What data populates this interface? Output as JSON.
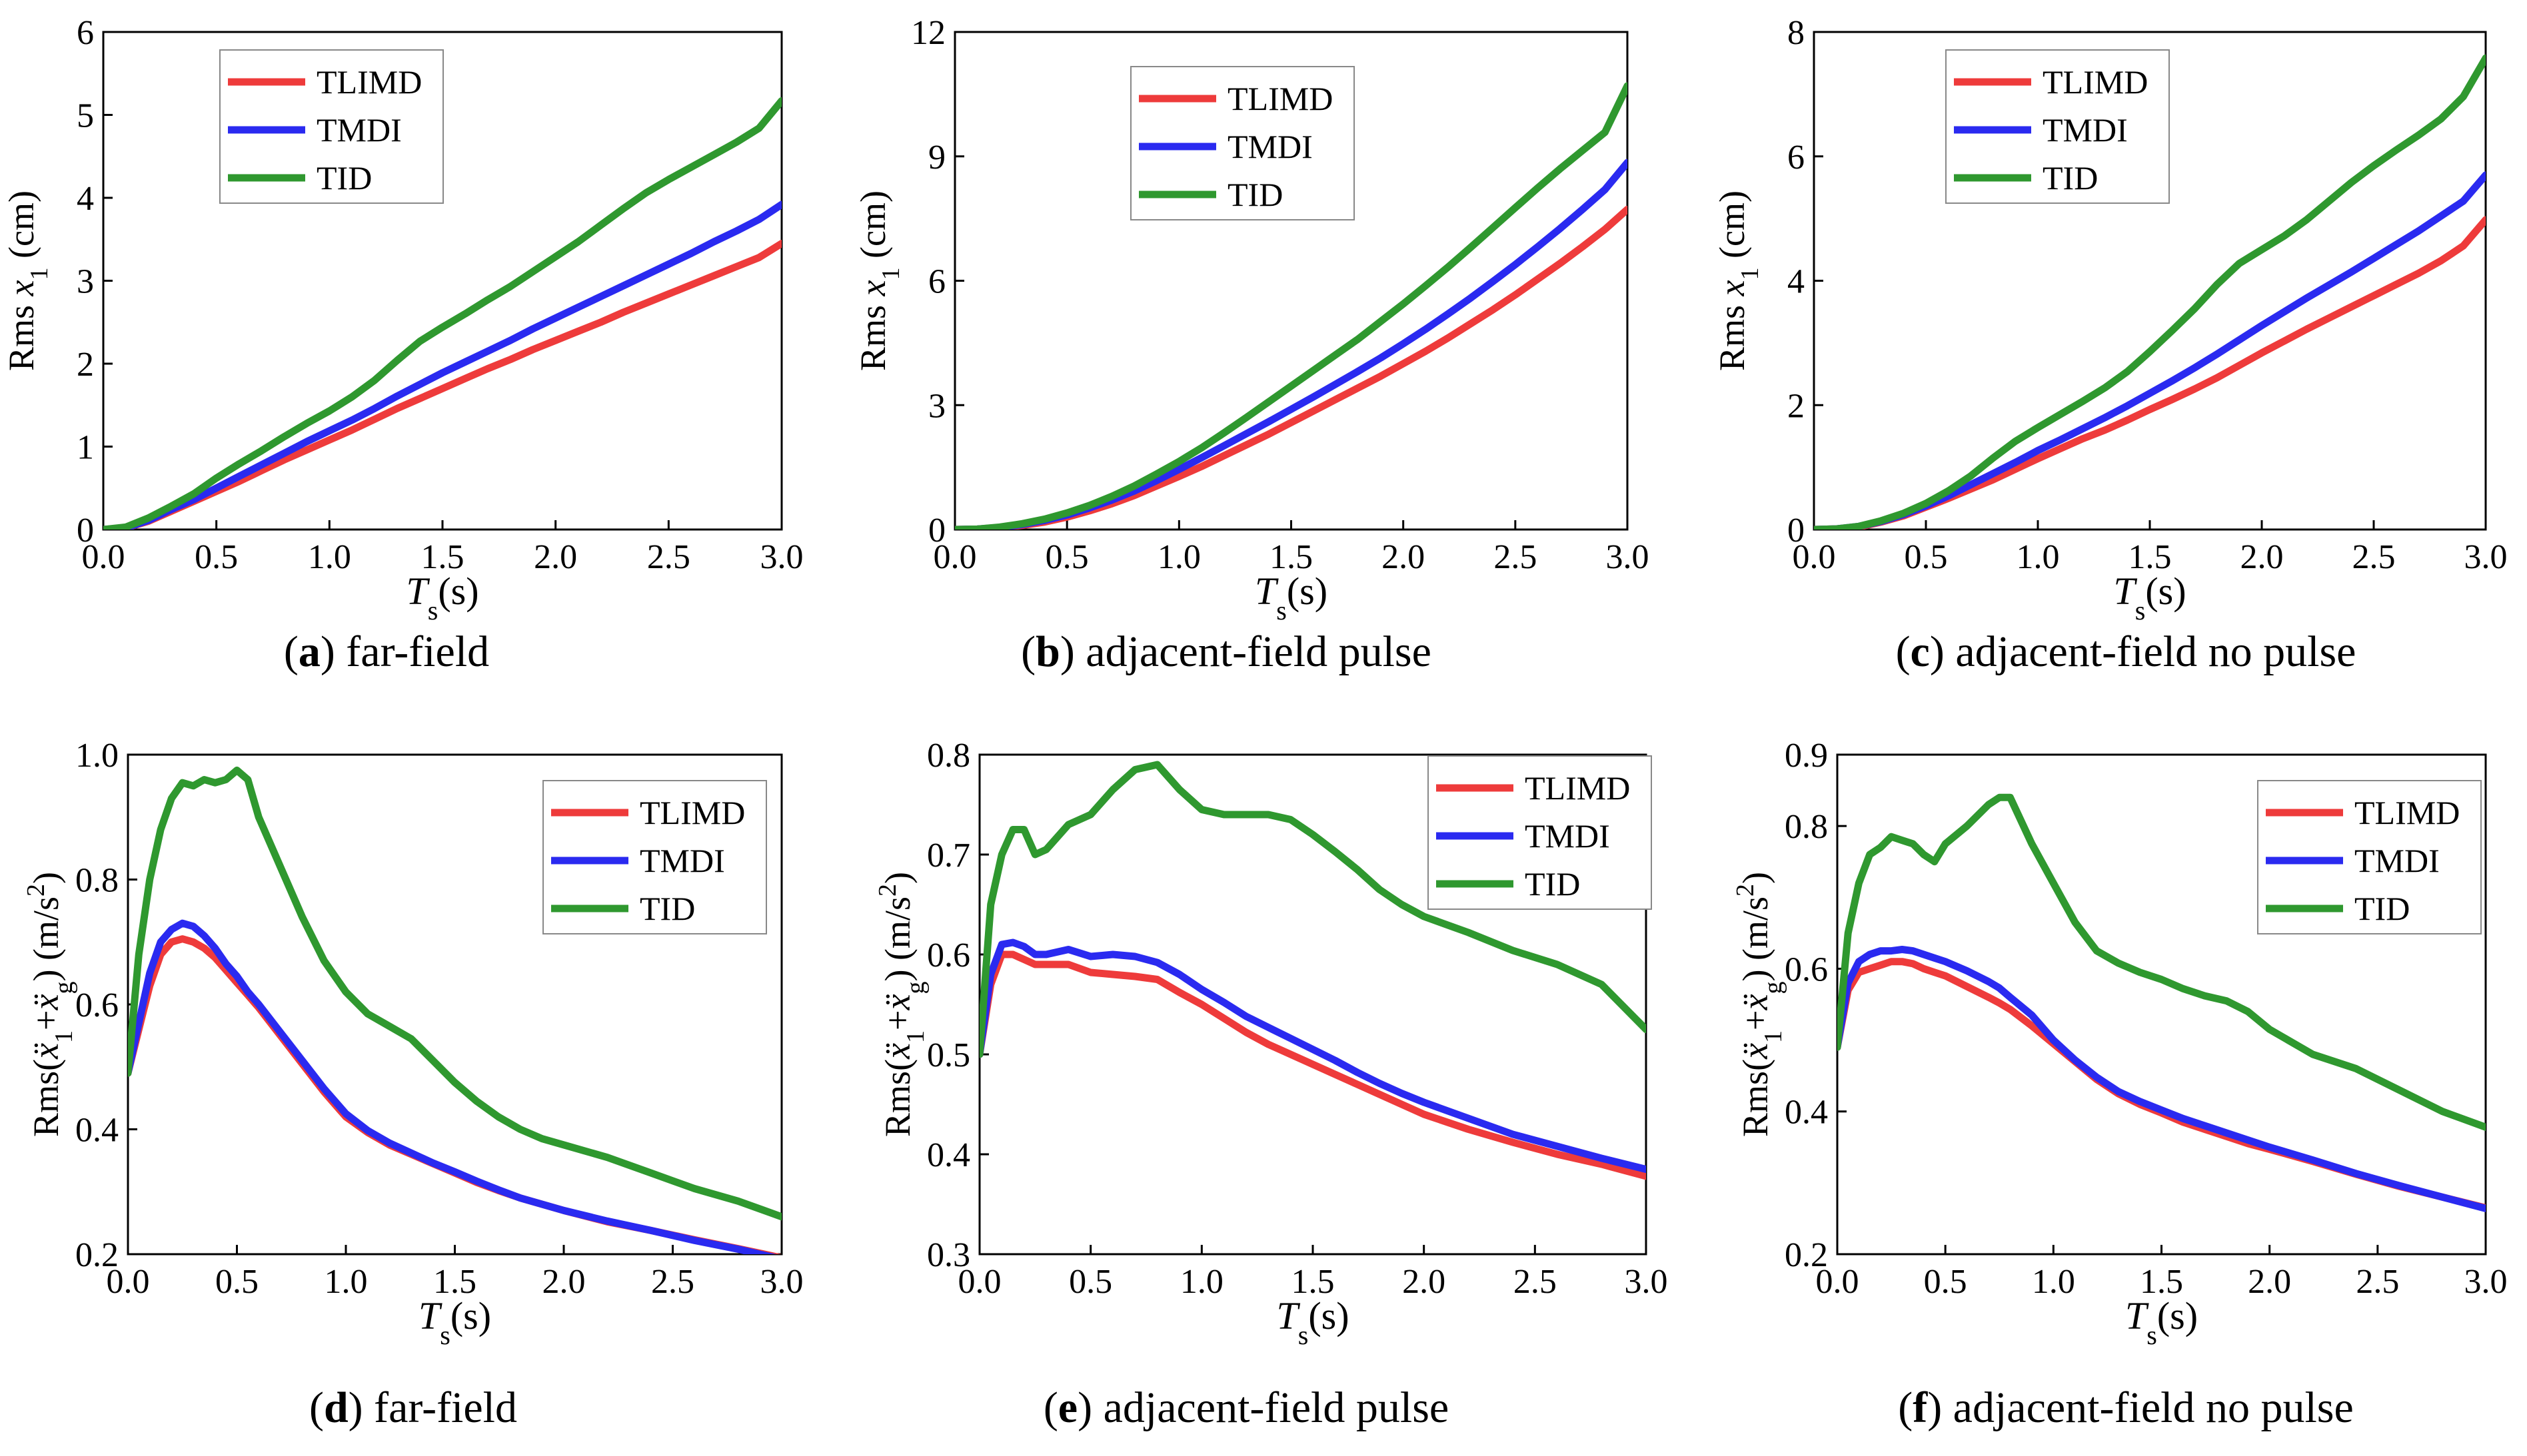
{
  "figure": {
    "colors": {
      "TLIMD": "#ee3b3b",
      "TMDI": "#2a2af0",
      "TID": "#2f982f"
    }
  },
  "chart_data": [
    {
      "id": "a",
      "type": "line",
      "caption": {
        "letter": "a",
        "text": " far-field"
      },
      "ylabel_html": "Rms <tspan font-style='italic'>x</tspan><tspan baseline-shift='sub' font-size='38'>1</tspan> (cm)",
      "xlabel": "Ts(s)",
      "xlim": [
        0,
        3
      ],
      "ylim": [
        0,
        6
      ],
      "xticks": [
        "0.0",
        "0.5",
        "1.0",
        "1.5",
        "2.0",
        "2.5",
        "3.0"
      ],
      "yticks": [
        "0",
        "1",
        "2",
        "3",
        "4",
        "5",
        "6"
      ],
      "legend": "top-left",
      "x": [
        0,
        0.1,
        0.2,
        0.3,
        0.4,
        0.5,
        0.6,
        0.7,
        0.8,
        0.9,
        1.0,
        1.1,
        1.2,
        1.3,
        1.4,
        1.5,
        1.6,
        1.7,
        1.8,
        1.9,
        2.0,
        2.1,
        2.2,
        2.3,
        2.4,
        2.5,
        2.6,
        2.7,
        2.8,
        2.9,
        3.0
      ],
      "series": [
        {
          "name": "TLIMD",
          "values": [
            0,
            0.02,
            0.1,
            0.22,
            0.34,
            0.46,
            0.58,
            0.71,
            0.84,
            0.96,
            1.08,
            1.2,
            1.33,
            1.46,
            1.58,
            1.7,
            1.82,
            1.94,
            2.05,
            2.17,
            2.28,
            2.39,
            2.5,
            2.62,
            2.73,
            2.84,
            2.95,
            3.06,
            3.17,
            3.28,
            3.45
          ]
        },
        {
          "name": "TMDI",
          "values": [
            0,
            0.02,
            0.11,
            0.24,
            0.36,
            0.5,
            0.64,
            0.78,
            0.92,
            1.06,
            1.19,
            1.32,
            1.46,
            1.61,
            1.75,
            1.89,
            2.02,
            2.15,
            2.28,
            2.42,
            2.55,
            2.68,
            2.81,
            2.94,
            3.07,
            3.2,
            3.33,
            3.47,
            3.6,
            3.74,
            3.92
          ]
        },
        {
          "name": "TID",
          "values": [
            0,
            0.03,
            0.14,
            0.28,
            0.43,
            0.62,
            0.79,
            0.95,
            1.12,
            1.28,
            1.43,
            1.6,
            1.8,
            2.04,
            2.27,
            2.44,
            2.6,
            2.77,
            2.93,
            3.11,
            3.29,
            3.47,
            3.67,
            3.87,
            4.06,
            4.22,
            4.37,
            4.52,
            4.67,
            4.84,
            5.17
          ]
        }
      ]
    },
    {
      "id": "b",
      "type": "line",
      "caption": {
        "letter": "b",
        "text": " adjacent-field pulse"
      },
      "ylabel_html": "Rms  <tspan font-style='italic'>x</tspan><tspan baseline-shift='sub' font-size='38'>1</tspan> (cm)",
      "xlabel": "Ts(s)",
      "xlim": [
        0,
        3
      ],
      "ylim": [
        0,
        12
      ],
      "xticks": [
        "0.0",
        "0.5",
        "1.0",
        "1.5",
        "2.0",
        "2.5",
        "3.0"
      ],
      "yticks": [
        "0",
        "3",
        "6",
        "9",
        "12"
      ],
      "legend": "top-center",
      "x": [
        0,
        0.1,
        0.2,
        0.3,
        0.4,
        0.5,
        0.6,
        0.7,
        0.8,
        0.9,
        1.0,
        1.1,
        1.2,
        1.3,
        1.4,
        1.5,
        1.6,
        1.7,
        1.8,
        1.9,
        2.0,
        2.1,
        2.2,
        2.3,
        2.4,
        2.5,
        2.6,
        2.7,
        2.8,
        2.9,
        3.0
      ],
      "series": [
        {
          "name": "TLIMD",
          "values": [
            0,
            0.01,
            0.04,
            0.1,
            0.18,
            0.3,
            0.45,
            0.62,
            0.82,
            1.05,
            1.28,
            1.52,
            1.78,
            2.04,
            2.3,
            2.58,
            2.86,
            3.14,
            3.42,
            3.7,
            4.0,
            4.3,
            4.62,
            4.96,
            5.3,
            5.66,
            6.04,
            6.42,
            6.82,
            7.24,
            7.72
          ]
        },
        {
          "name": "TMDI",
          "values": [
            0,
            0.01,
            0.05,
            0.12,
            0.22,
            0.35,
            0.52,
            0.71,
            0.93,
            1.18,
            1.45,
            1.73,
            2.02,
            2.31,
            2.6,
            2.9,
            3.2,
            3.51,
            3.82,
            4.14,
            4.48,
            4.83,
            5.2,
            5.58,
            5.98,
            6.39,
            6.82,
            7.26,
            7.72,
            8.2,
            8.85
          ]
        },
        {
          "name": "TID",
          "values": [
            0,
            0.01,
            0.06,
            0.14,
            0.25,
            0.4,
            0.58,
            0.8,
            1.05,
            1.34,
            1.64,
            1.97,
            2.33,
            2.7,
            3.08,
            3.46,
            3.84,
            4.22,
            4.6,
            5.02,
            5.44,
            5.88,
            6.33,
            6.8,
            7.28,
            7.76,
            8.24,
            8.7,
            9.14,
            9.58,
            10.7
          ]
        }
      ]
    },
    {
      "id": "c",
      "type": "line",
      "caption": {
        "letter": "c",
        "text": " adjacent-field no pulse"
      },
      "ylabel_html": "Rms <tspan font-style='italic'>x</tspan><tspan baseline-shift='sub' font-size='38'>1</tspan> (cm)",
      "xlabel": "Ts(s)",
      "xlim": [
        0,
        3
      ],
      "ylim": [
        0,
        8
      ],
      "xticks": [
        "0.0",
        "0.5",
        "1.0",
        "1.5",
        "2.0",
        "2.5",
        "3.0"
      ],
      "yticks": [
        "0",
        "2",
        "4",
        "6",
        "8"
      ],
      "legend": "top-center",
      "x": [
        0,
        0.1,
        0.2,
        0.3,
        0.4,
        0.5,
        0.6,
        0.7,
        0.8,
        0.9,
        1.0,
        1.1,
        1.2,
        1.3,
        1.4,
        1.5,
        1.6,
        1.7,
        1.8,
        1.9,
        2.0,
        2.1,
        2.2,
        2.3,
        2.4,
        2.5,
        2.6,
        2.7,
        2.8,
        2.9,
        3.0
      ],
      "series": [
        {
          "name": "TLIMD",
          "values": [
            0,
            0.01,
            0.04,
            0.12,
            0.22,
            0.36,
            0.5,
            0.65,
            0.8,
            0.97,
            1.14,
            1.3,
            1.46,
            1.6,
            1.76,
            1.93,
            2.09,
            2.26,
            2.44,
            2.64,
            2.84,
            3.03,
            3.22,
            3.4,
            3.58,
            3.76,
            3.94,
            4.12,
            4.32,
            4.56,
            4.98
          ]
        },
        {
          "name": "TMDI",
          "values": [
            0,
            0.01,
            0.05,
            0.13,
            0.24,
            0.38,
            0.54,
            0.72,
            0.9,
            1.08,
            1.27,
            1.44,
            1.62,
            1.8,
            1.99,
            2.19,
            2.39,
            2.6,
            2.82,
            3.05,
            3.28,
            3.5,
            3.72,
            3.93,
            4.14,
            4.36,
            4.58,
            4.8,
            5.04,
            5.28,
            5.7
          ]
        },
        {
          "name": "TID",
          "values": [
            0,
            0.01,
            0.05,
            0.14,
            0.26,
            0.42,
            0.62,
            0.86,
            1.15,
            1.42,
            1.64,
            1.85,
            2.06,
            2.28,
            2.54,
            2.86,
            3.2,
            3.55,
            3.94,
            4.28,
            4.5,
            4.72,
            4.98,
            5.28,
            5.58,
            5.85,
            6.1,
            6.34,
            6.6,
            6.96,
            7.58
          ]
        }
      ]
    },
    {
      "id": "d",
      "type": "line",
      "caption": {
        "letter": "d",
        "text": " far-field"
      },
      "ylabel_html": "Rms(<tspan font-style='italic'>ẍ</tspan><tspan baseline-shift='sub' font-size='38'>1</tspan>+<tspan font-style='italic'>ẍ</tspan><tspan baseline-shift='sub' font-size='38'>g</tspan>) (m/s<tspan baseline-shift='super' font-size='38'>2</tspan>)",
      "xlabel": "Ts(s)",
      "xlim": [
        0,
        3
      ],
      "ylim": [
        0.2,
        1.0
      ],
      "xticks": [
        "0.0",
        "0.5",
        "1.0",
        "1.5",
        "2.0",
        "2.5",
        "3.0"
      ],
      "yticks": [
        "0.2",
        "0.4",
        "0.6",
        "0.8",
        "1.0"
      ],
      "legend": "top-right",
      "x": [
        0,
        0.05,
        0.1,
        0.15,
        0.2,
        0.25,
        0.3,
        0.35,
        0.4,
        0.45,
        0.5,
        0.55,
        0.6,
        0.7,
        0.8,
        0.9,
        1.0,
        1.1,
        1.2,
        1.3,
        1.4,
        1.5,
        1.6,
        1.7,
        1.8,
        1.9,
        2.0,
        2.2,
        2.4,
        2.6,
        2.8,
        3.0
      ],
      "series": [
        {
          "name": "TLIMD",
          "values": [
            0.49,
            0.56,
            0.63,
            0.68,
            0.7,
            0.705,
            0.7,
            0.69,
            0.675,
            0.655,
            0.635,
            0.615,
            0.595,
            0.55,
            0.505,
            0.46,
            0.42,
            0.395,
            0.375,
            0.36,
            0.345,
            0.33,
            0.315,
            0.302,
            0.29,
            0.28,
            0.27,
            0.252,
            0.238,
            0.223,
            0.209,
            0.194
          ]
        },
        {
          "name": "TMDI",
          "values": [
            0.49,
            0.57,
            0.65,
            0.7,
            0.72,
            0.73,
            0.725,
            0.71,
            0.69,
            0.665,
            0.645,
            0.62,
            0.6,
            0.555,
            0.51,
            0.465,
            0.425,
            0.398,
            0.378,
            0.362,
            0.346,
            0.332,
            0.317,
            0.303,
            0.29,
            0.28,
            0.27,
            0.253,
            0.238,
            0.222,
            0.208,
            0.192
          ]
        },
        {
          "name": "TID",
          "values": [
            0.49,
            0.68,
            0.8,
            0.88,
            0.93,
            0.955,
            0.95,
            0.96,
            0.955,
            0.96,
            0.975,
            0.96,
            0.9,
            0.82,
            0.74,
            0.67,
            0.62,
            0.585,
            0.565,
            0.545,
            0.51,
            0.475,
            0.445,
            0.42,
            0.4,
            0.385,
            0.375,
            0.355,
            0.33,
            0.305,
            0.285,
            0.26
          ]
        }
      ]
    },
    {
      "id": "e",
      "type": "line",
      "caption": {
        "letter": "e",
        "text": " adjacent-field pulse"
      },
      "ylabel_html": "Rms(<tspan font-style='italic'>ẍ</tspan><tspan baseline-shift='sub' font-size='38'>1</tspan>+<tspan font-style='italic'>ẍ</tspan><tspan baseline-shift='sub' font-size='38'>g</tspan>) (m/s<tspan baseline-shift='super' font-size='38'>2</tspan>)",
      "xlabel": "Ts(s)",
      "xlim": [
        0,
        3
      ],
      "ylim": [
        0.3,
        0.8
      ],
      "xticks": [
        "0.0",
        "0.5",
        "1.0",
        "1.5",
        "2.0",
        "2.5",
        "3.0"
      ],
      "yticks": [
        "0.3",
        "0.4",
        "0.5",
        "0.6",
        "0.7",
        "0.8"
      ],
      "legend": "top-right",
      "x": [
        0,
        0.05,
        0.1,
        0.15,
        0.2,
        0.25,
        0.3,
        0.4,
        0.5,
        0.6,
        0.7,
        0.8,
        0.9,
        1.0,
        1.1,
        1.2,
        1.3,
        1.4,
        1.5,
        1.6,
        1.7,
        1.8,
        1.9,
        2.0,
        2.2,
        2.4,
        2.6,
        2.8,
        3.0
      ],
      "series": [
        {
          "name": "TLIMD",
          "values": [
            0.5,
            0.57,
            0.6,
            0.6,
            0.595,
            0.59,
            0.59,
            0.59,
            0.582,
            0.58,
            0.578,
            0.575,
            0.562,
            0.55,
            0.536,
            0.522,
            0.51,
            0.5,
            0.49,
            0.48,
            0.47,
            0.46,
            0.45,
            0.44,
            0.425,
            0.412,
            0.4,
            0.39,
            0.378
          ]
        },
        {
          "name": "TMDI",
          "values": [
            0.5,
            0.58,
            0.61,
            0.612,
            0.608,
            0.6,
            0.6,
            0.605,
            0.598,
            0.6,
            0.598,
            0.592,
            0.58,
            0.565,
            0.552,
            0.538,
            0.527,
            0.516,
            0.505,
            0.494,
            0.482,
            0.471,
            0.461,
            0.452,
            0.436,
            0.42,
            0.408,
            0.396,
            0.385
          ]
        },
        {
          "name": "TID",
          "values": [
            0.5,
            0.65,
            0.7,
            0.725,
            0.725,
            0.7,
            0.705,
            0.73,
            0.74,
            0.765,
            0.785,
            0.79,
            0.765,
            0.745,
            0.74,
            0.74,
            0.74,
            0.735,
            0.72,
            0.703,
            0.685,
            0.665,
            0.65,
            0.638,
            0.622,
            0.604,
            0.59,
            0.57,
            0.525
          ]
        }
      ]
    },
    {
      "id": "f",
      "type": "line",
      "caption": {
        "letter": "f",
        "text": " adjacent-field no pulse"
      },
      "ylabel_html": "Rms(<tspan font-style='italic'>ẍ</tspan><tspan baseline-shift='sub' font-size='38'>1</tspan>+<tspan font-style='italic'>ẍ</tspan><tspan baseline-shift='sub' font-size='38'>g</tspan>) (m/s<tspan baseline-shift='super' font-size='38'>2</tspan>)",
      "xlabel": "Ts(s)",
      "xlim": [
        0,
        3
      ],
      "ylim": [
        0.2,
        0.9
      ],
      "xticks": [
        "0.0",
        "0.5",
        "1.0",
        "1.5",
        "2.0",
        "2.5",
        "3.0"
      ],
      "yticks": [
        "0.2",
        "0.4",
        "0.6",
        "0.8",
        "0.9"
      ],
      "legend": "top-right",
      "x": [
        0,
        0.05,
        0.1,
        0.15,
        0.2,
        0.25,
        0.3,
        0.35,
        0.4,
        0.45,
        0.5,
        0.6,
        0.7,
        0.75,
        0.8,
        0.9,
        1.0,
        1.1,
        1.2,
        1.3,
        1.4,
        1.5,
        1.6,
        1.7,
        1.8,
        1.9,
        2.0,
        2.2,
        2.4,
        2.6,
        2.8,
        3.0
      ],
      "series": [
        {
          "name": "TLIMD",
          "values": [
            0.49,
            0.57,
            0.595,
            0.6,
            0.605,
            0.61,
            0.61,
            0.607,
            0.6,
            0.595,
            0.59,
            0.575,
            0.56,
            0.552,
            0.543,
            0.52,
            0.495,
            0.47,
            0.445,
            0.425,
            0.41,
            0.398,
            0.385,
            0.375,
            0.365,
            0.355,
            0.347,
            0.33,
            0.312,
            0.295,
            0.28,
            0.265
          ]
        },
        {
          "name": "TMDI",
          "values": [
            0.49,
            0.58,
            0.61,
            0.62,
            0.625,
            0.625,
            0.627,
            0.625,
            0.62,
            0.615,
            0.61,
            0.597,
            0.582,
            0.573,
            0.56,
            0.535,
            0.5,
            0.472,
            0.448,
            0.428,
            0.414,
            0.402,
            0.39,
            0.38,
            0.37,
            0.36,
            0.35,
            0.332,
            0.313,
            0.296,
            0.28,
            0.264
          ]
        },
        {
          "name": "TID",
          "values": [
            0.49,
            0.65,
            0.72,
            0.76,
            0.77,
            0.785,
            0.78,
            0.775,
            0.76,
            0.75,
            0.775,
            0.8,
            0.83,
            0.84,
            0.84,
            0.775,
            0.72,
            0.665,
            0.625,
            0.608,
            0.595,
            0.585,
            0.572,
            0.562,
            0.555,
            0.54,
            0.515,
            0.48,
            0.46,
            0.43,
            0.4,
            0.378
          ]
        }
      ]
    }
  ]
}
